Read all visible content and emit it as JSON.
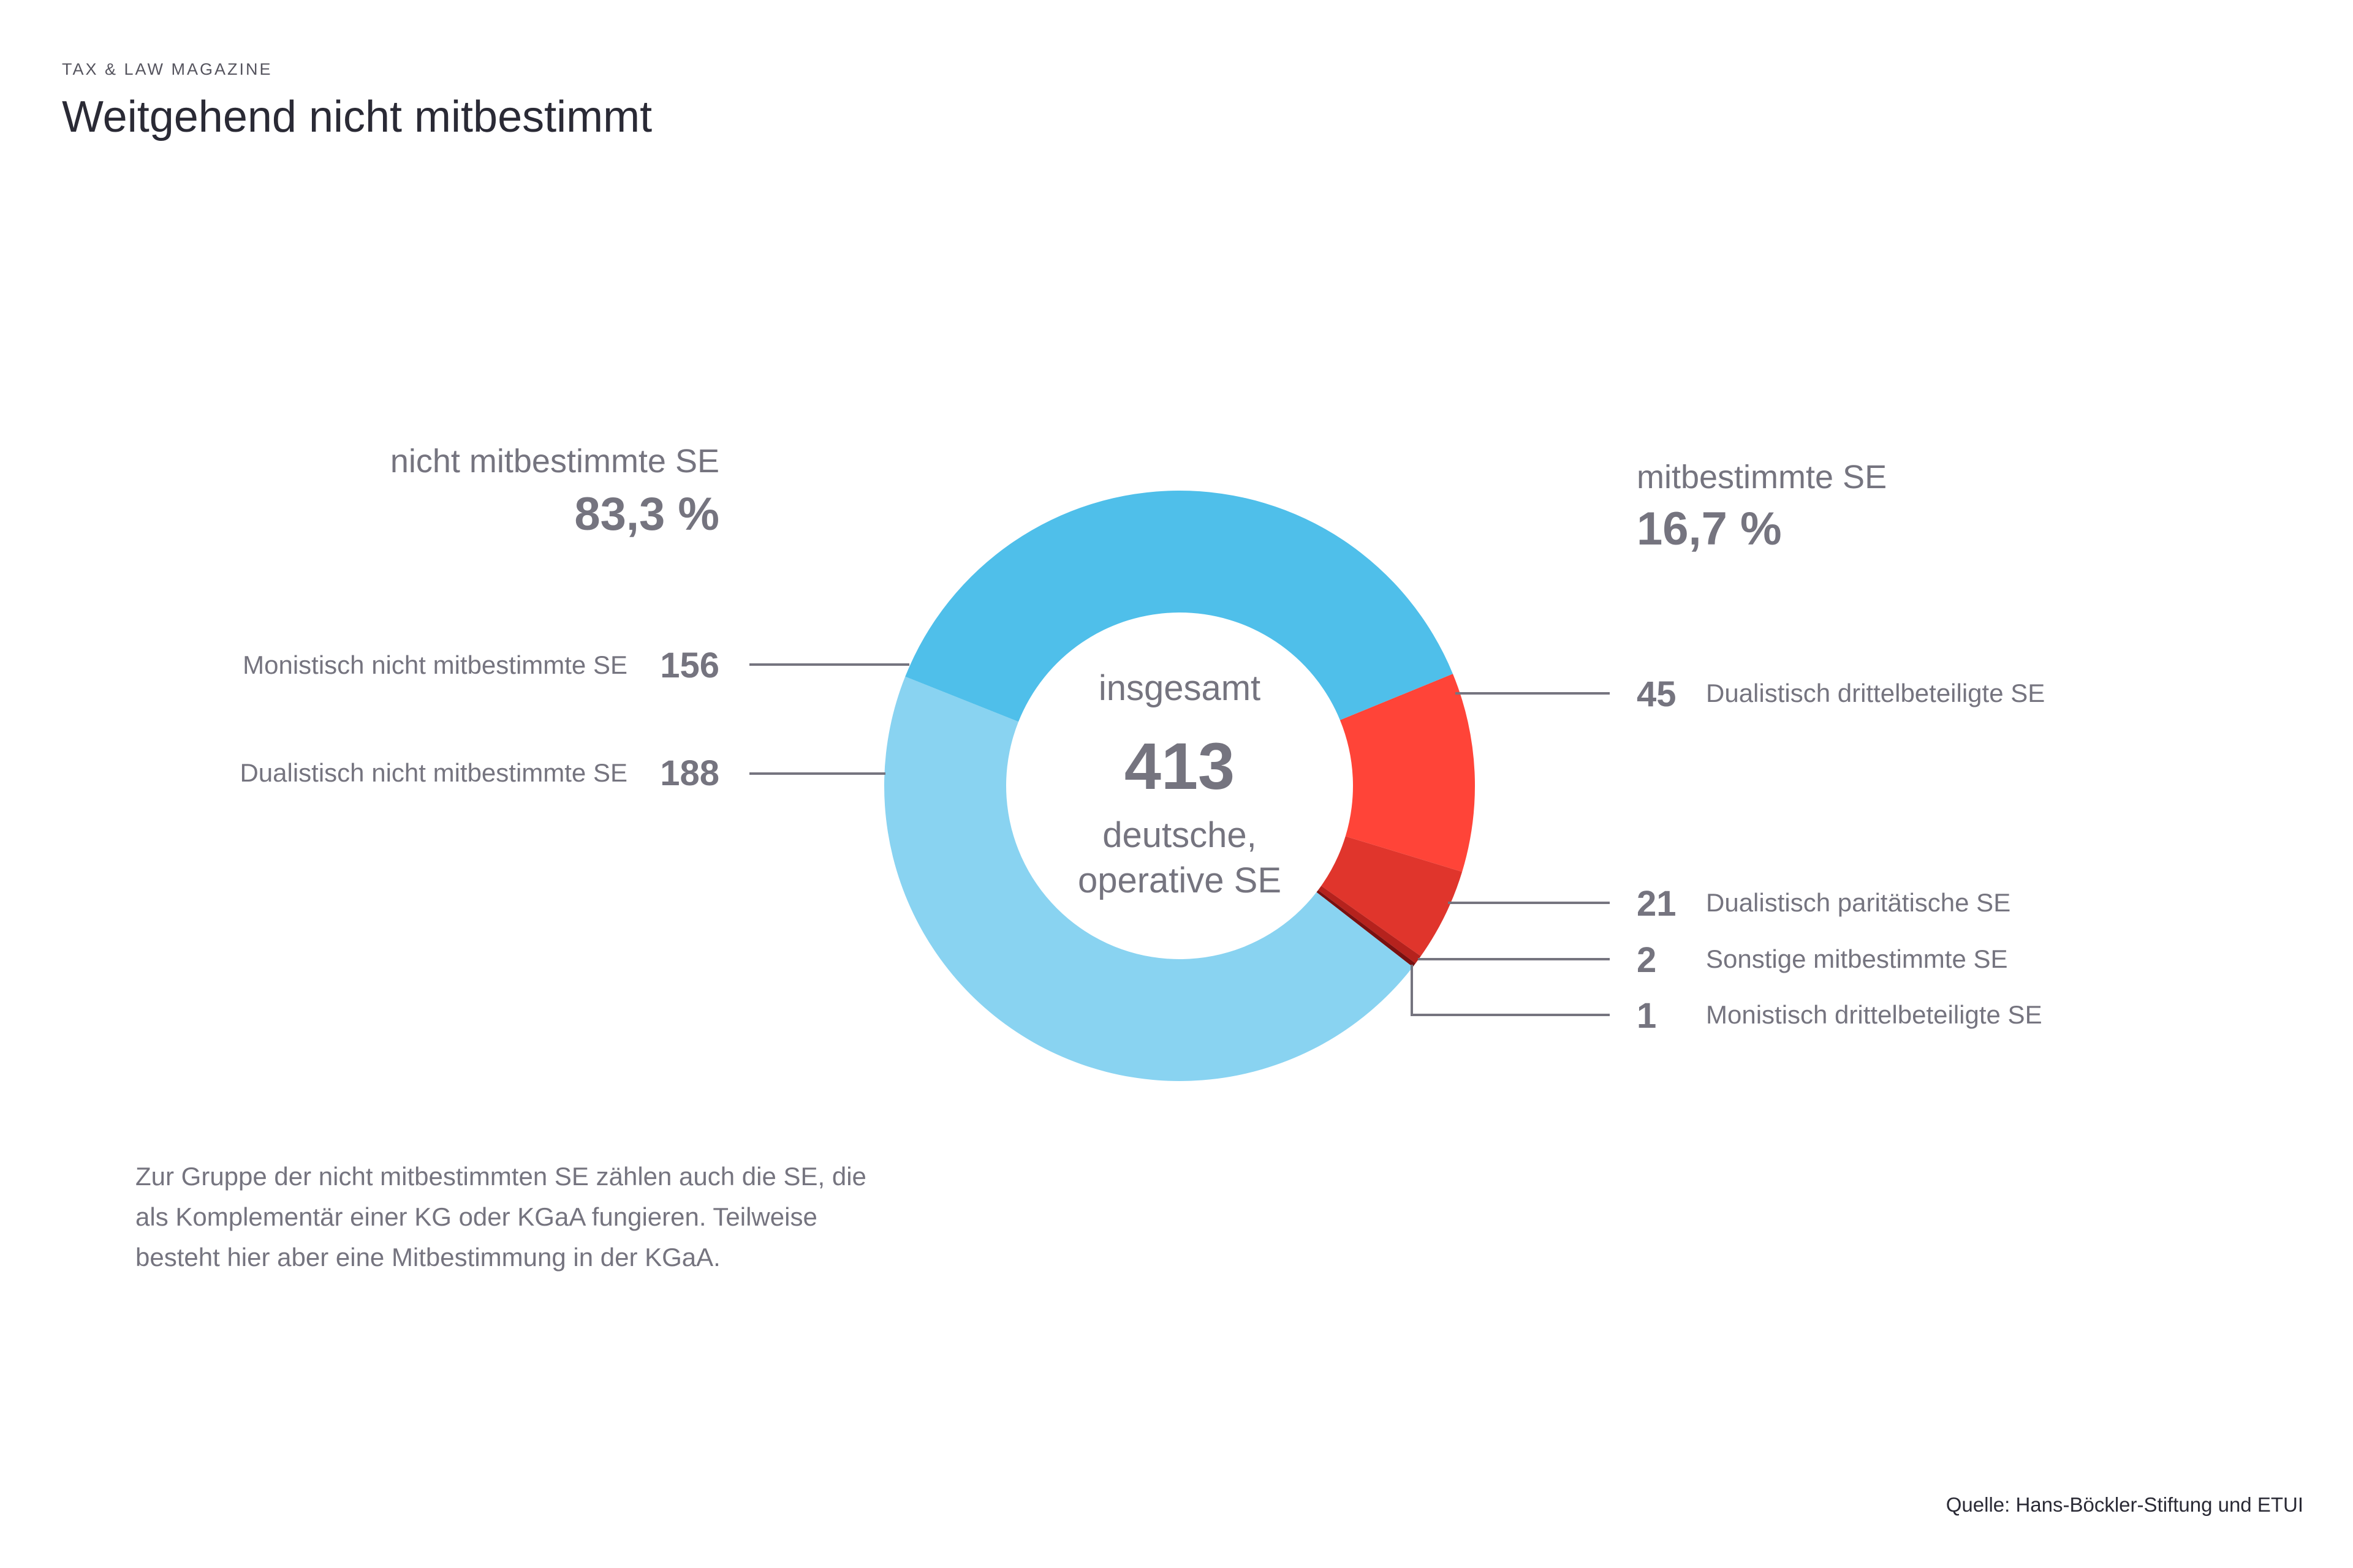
{
  "header": {
    "kicker": "TAX & LAW MAGAZINE",
    "title": "Weitgehend nicht mitbestimmt"
  },
  "chart_data": {
    "type": "pie",
    "variant": "donut",
    "total": 413,
    "center_label": {
      "top": "insgesamt",
      "value": "413",
      "line1": "deutsche,",
      "line2": "operative SE"
    },
    "groups": [
      {
        "name": "nicht mitbestimmte SE",
        "percent_label": "83,3 %",
        "percent": 83.3
      },
      {
        "name": "mitbestimmte SE",
        "percent_label": "16,7 %",
        "percent": 16.7
      }
    ],
    "slices": [
      {
        "label": "Dualistisch drittelbeteiligte SE",
        "value": 45,
        "group": "mitbestimmte SE",
        "color": "#ff4438"
      },
      {
        "label": "Dualistisch paritätische SE",
        "value": 21,
        "group": "mitbestimmte SE",
        "color": "#e0352c"
      },
      {
        "label": "Sonstige mitbestimmte SE",
        "value": 2,
        "group": "mitbestimmte SE",
        "color": "#b5221d"
      },
      {
        "label": "Monistisch drittelbeteiligte SE",
        "value": 1,
        "group": "mitbestimmte SE",
        "color": "#7a1010"
      },
      {
        "label": "Dualistisch nicht mitbestimmte SE",
        "value": 188,
        "group": "nicht mitbestimmte SE",
        "color": "#89d3f1"
      },
      {
        "label": "Monistisch nicht mitbestimmte SE",
        "value": 156,
        "group": "nicht mitbestimmte SE",
        "color": "#4fbfea"
      }
    ]
  },
  "note": "Zur Gruppe der nicht mitbestimmten SE zählen auch die SE, die als Komplementär einer KG oder KGaA fungieren. Teilweise besteht hier aber eine Mitbestimmung in der KGaA.",
  "source": "Quelle: Hans-Böckler-Stiftung und ETUI"
}
